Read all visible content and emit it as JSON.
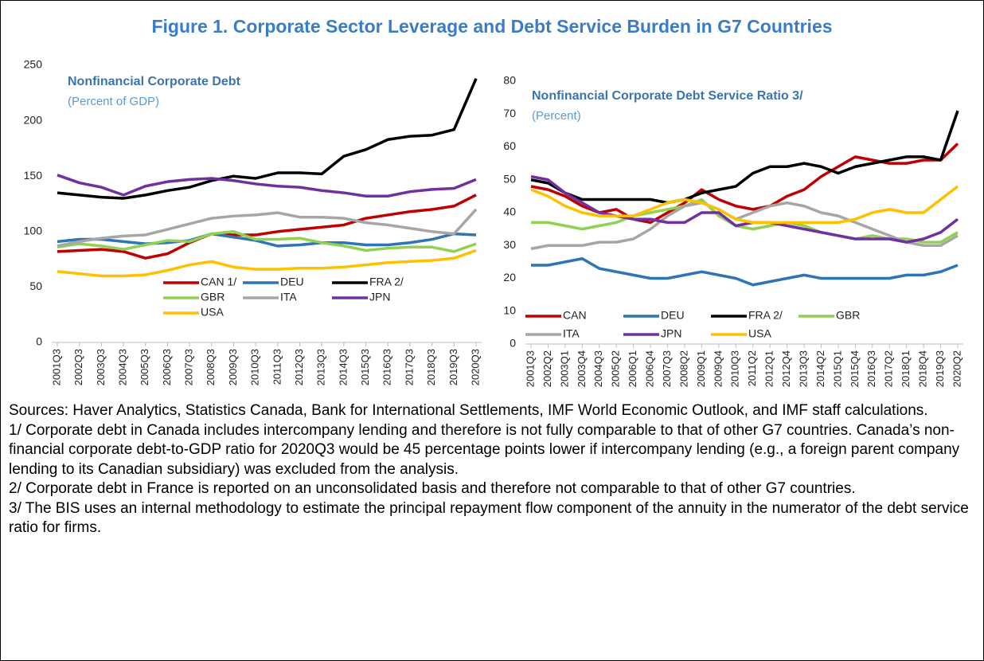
{
  "title": "Figure 1. Corporate Sector Leverage and Debt Service Burden in G7 Countries",
  "chart_data": [
    {
      "type": "line",
      "title": "Nonfinancial Corporate Debt",
      "subtitle": "(Percent of GDP)",
      "categories": [
        "2001Q3",
        "2002Q3",
        "2003Q3",
        "2004Q3",
        "2005Q3",
        "2006Q3",
        "2007Q3",
        "2008Q3",
        "2009Q3",
        "2010Q3",
        "2011Q3",
        "2012Q3",
        "2013Q3",
        "2014Q3",
        "2015Q3",
        "2016Q3",
        "2017Q3",
        "2018Q3",
        "2019Q3",
        "2020Q3"
      ],
      "ylim": [
        0,
        250
      ],
      "yticks": [
        0,
        50,
        100,
        150,
        200,
        250
      ],
      "series": [
        {
          "name": "CAN 1/",
          "color": "#c00000",
          "values": [
            82,
            83,
            84,
            82,
            76,
            80,
            90,
            98,
            97,
            97,
            100,
            102,
            104,
            106,
            112,
            115,
            118,
            120,
            123,
            133
          ]
        },
        {
          "name": "DEU",
          "color": "#2e75b6",
          "values": [
            91,
            93,
            93,
            91,
            89,
            90,
            92,
            98,
            95,
            92,
            87,
            88,
            90,
            90,
            88,
            88,
            90,
            93,
            98,
            97
          ]
        },
        {
          "name": "FRA 2/",
          "color": "#000000",
          "values": [
            135,
            133,
            131,
            130,
            133,
            137,
            140,
            146,
            150,
            148,
            153,
            153,
            152,
            168,
            174,
            183,
            186,
            187,
            192,
            238
          ]
        },
        {
          "name": "GBR",
          "color": "#92d050",
          "values": [
            86,
            89,
            87,
            84,
            88,
            92,
            91,
            98,
            100,
            93,
            93,
            94,
            90,
            87,
            83,
            85,
            86,
            86,
            82,
            89
          ]
        },
        {
          "name": "ITA",
          "color": "#a6a6a6",
          "values": [
            87,
            91,
            94,
            96,
            97,
            102,
            107,
            112,
            114,
            115,
            117,
            113,
            113,
            112,
            108,
            106,
            103,
            100,
            98,
            120
          ]
        },
        {
          "name": "JPN",
          "color": "#7030a0",
          "values": [
            151,
            144,
            140,
            133,
            141,
            145,
            147,
            148,
            146,
            143,
            141,
            140,
            137,
            135,
            132,
            132,
            136,
            138,
            139,
            147
          ]
        },
        {
          "name": "USA",
          "color": "#ffc000",
          "values": [
            64,
            62,
            60,
            60,
            61,
            65,
            70,
            73,
            68,
            66,
            66,
            67,
            67,
            68,
            70,
            72,
            73,
            74,
            76,
            83
          ]
        }
      ]
    },
    {
      "type": "line",
      "title": "Nonfinancial Corporate Debt Service Ratio 3/",
      "subtitle": "(Percent)",
      "categories": [
        "2001Q3",
        "2002Q2",
        "2003Q1",
        "2003Q4",
        "2004Q3",
        "2005Q2",
        "2006Q1",
        "2006Q4",
        "2007Q3",
        "2008Q2",
        "2009Q1",
        "2009Q4",
        "2010Q3",
        "2011Q2",
        "2012Q1",
        "2012Q4",
        "2013Q3",
        "2014Q2",
        "2015Q1",
        "2015Q4",
        "2016Q3",
        "2017Q2",
        "2018Q1",
        "2018Q4",
        "2019Q3",
        "2020Q2"
      ],
      "ylim": [
        0,
        80
      ],
      "yticks": [
        0,
        10,
        20,
        30,
        40,
        50,
        60,
        70,
        80
      ],
      "series": [
        {
          "name": "CAN",
          "color": "#c00000",
          "values": [
            48,
            47,
            45,
            42,
            40,
            41,
            38,
            37,
            40,
            43,
            47,
            44,
            42,
            41,
            42,
            45,
            47,
            51,
            54,
            57,
            56,
            55,
            55,
            56,
            56,
            61
          ]
        },
        {
          "name": "DEU",
          "color": "#2e75b6",
          "values": [
            24,
            24,
            25,
            26,
            23,
            22,
            21,
            20,
            20,
            21,
            22,
            21,
            20,
            18,
            19,
            20,
            21,
            20,
            20,
            20,
            20,
            20,
            21,
            21,
            22,
            24
          ]
        },
        {
          "name": "FRA 2/",
          "color": "#000000",
          "values": [
            50,
            49,
            46,
            44,
            44,
            44,
            44,
            44,
            43,
            44,
            46,
            47,
            48,
            52,
            54,
            54,
            55,
            54,
            52,
            54,
            55,
            56,
            57,
            57,
            56,
            71
          ]
        },
        {
          "name": "GBR",
          "color": "#92d050",
          "values": [
            37,
            37,
            36,
            35,
            36,
            37,
            39,
            40,
            41,
            42,
            44,
            39,
            36,
            35,
            36,
            37,
            36,
            34,
            33,
            32,
            33,
            32,
            32,
            31,
            31,
            34
          ]
        },
        {
          "name": "ITA",
          "color": "#a6a6a6",
          "values": [
            29,
            30,
            30,
            30,
            31,
            31,
            32,
            35,
            39,
            42,
            43,
            41,
            38,
            40,
            42,
            43,
            42,
            40,
            39,
            37,
            35,
            33,
            31,
            30,
            30,
            33
          ]
        },
        {
          "name": "JPN",
          "color": "#7030a0",
          "values": [
            51,
            50,
            46,
            43,
            40,
            39,
            38,
            38,
            37,
            37,
            40,
            40,
            36,
            37,
            37,
            36,
            35,
            34,
            33,
            32,
            32,
            32,
            31,
            32,
            34,
            38
          ]
        },
        {
          "name": "USA",
          "color": "#ffc000",
          "values": [
            47,
            45,
            42,
            40,
            39,
            39,
            39,
            41,
            43,
            44,
            43,
            41,
            38,
            37,
            37,
            37,
            37,
            37,
            37,
            38,
            40,
            41,
            40,
            40,
            44,
            48
          ]
        }
      ]
    }
  ],
  "notes": [
    "Sources: Haver Analytics, Statistics Canada, Bank for International Settlements, IMF World Economic Outlook, and IMF staff calculations.",
    "1/ Corporate debt in Canada includes intercompany lending and therefore is not fully comparable to that of other G7 countries. Canada’s non-financial corporate debt-to-GDP ratio for 2020Q3 would be 45 percentage points lower if intercompany lending (e.g., a foreign parent company lending to its Canadian subsidiary) was excluded from the analysis.",
    "2/ Corporate debt in France is reported on an unconsolidated basis and therefore not comparable to that of other G7 countries.",
    "3/ The BIS uses an internal methodology to estimate the principal repayment flow component of the annuity in the numerator of the debt service ratio for firms."
  ]
}
